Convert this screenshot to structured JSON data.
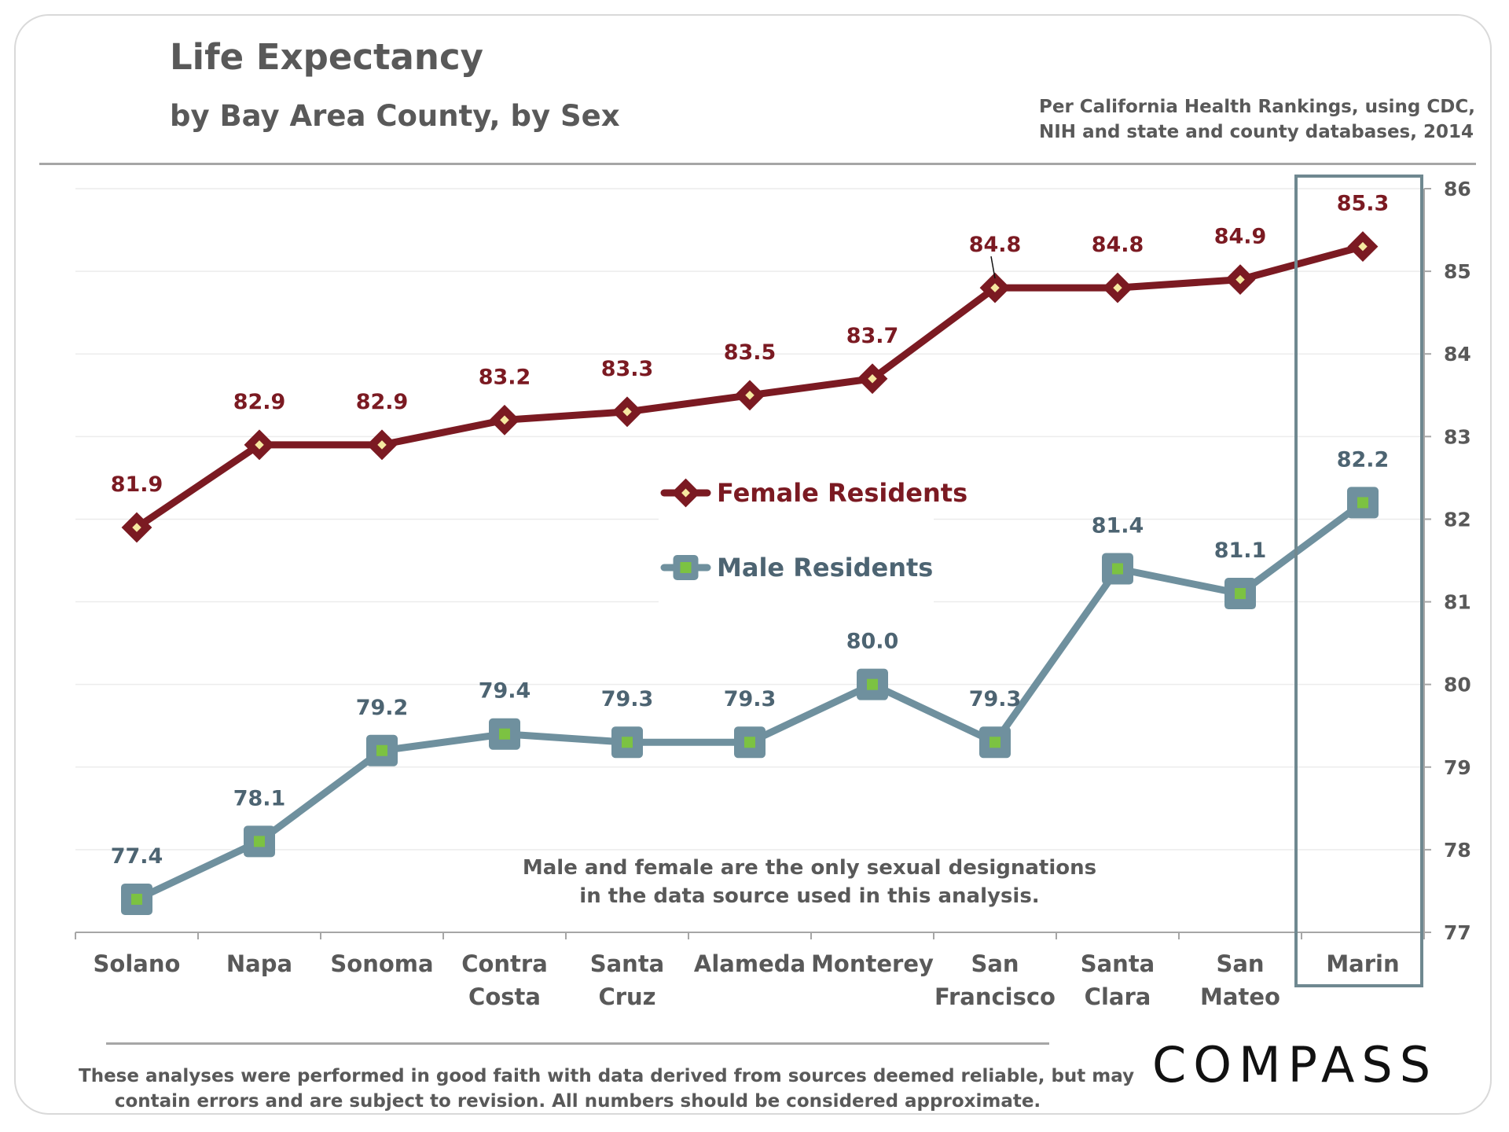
{
  "title": "Life Expectancy",
  "subtitle": "by Bay Area County, by Sex",
  "source": [
    "Per California Health Rankings, using  CDC,",
    "NIH and state and county databases, 2014"
  ],
  "note": [
    "Male and female are the only sexual designations",
    "in the data source used in this analysis."
  ],
  "disclaimer": [
    "These analyses were performed in good faith with data derived from sources deemed reliable, but may",
    "contain errors and are subject to revision.  All numbers should be considered approximate."
  ],
  "logo_text": "COMPASS",
  "colors": {
    "female": "#7b1a22",
    "male": "#6f909e",
    "male_marker_fill": "#7cc242",
    "female_marker_fill": "#f5e8a0",
    "highlight_box": "#6f8890"
  },
  "chart_data": {
    "type": "line",
    "categories": [
      [
        "Solano"
      ],
      [
        "Napa"
      ],
      [
        "Sonoma"
      ],
      [
        "Contra",
        "Costa"
      ],
      [
        "Santa",
        "Cruz"
      ],
      [
        "Alameda"
      ],
      [
        "Monterey"
      ],
      [
        "San",
        "Francisco"
      ],
      [
        "Santa",
        "Clara"
      ],
      [
        "San",
        "Mateo"
      ],
      [
        "Marin"
      ]
    ],
    "series": [
      {
        "name": "Female Residents",
        "values": [
          81.9,
          82.9,
          82.9,
          83.2,
          83.3,
          83.5,
          83.7,
          84.8,
          84.8,
          84.9,
          85.3
        ],
        "labels": [
          "81.9",
          "82.9",
          "82.9",
          "83.2",
          "83.3",
          "83.5",
          "83.7",
          "84.8",
          "84.8",
          "84.9",
          "85.3"
        ]
      },
      {
        "name": "Male Residents",
        "values": [
          77.4,
          78.1,
          79.2,
          79.4,
          79.3,
          79.3,
          80.0,
          79.3,
          81.4,
          81.1,
          82.2
        ],
        "labels": [
          "77.4",
          "78.1",
          "79.2",
          "79.4",
          "79.3",
          "79.3",
          "80.0",
          "79.3",
          "81.4",
          "81.1",
          "82.2"
        ]
      }
    ],
    "y_axis": {
      "position": "right",
      "min": 77,
      "max": 86,
      "ticks": [
        "77",
        "78",
        "79",
        "80",
        "81",
        "82",
        "83",
        "84",
        "85",
        "86"
      ]
    },
    "highlight": "Marin",
    "grid": true,
    "legend": "center"
  }
}
